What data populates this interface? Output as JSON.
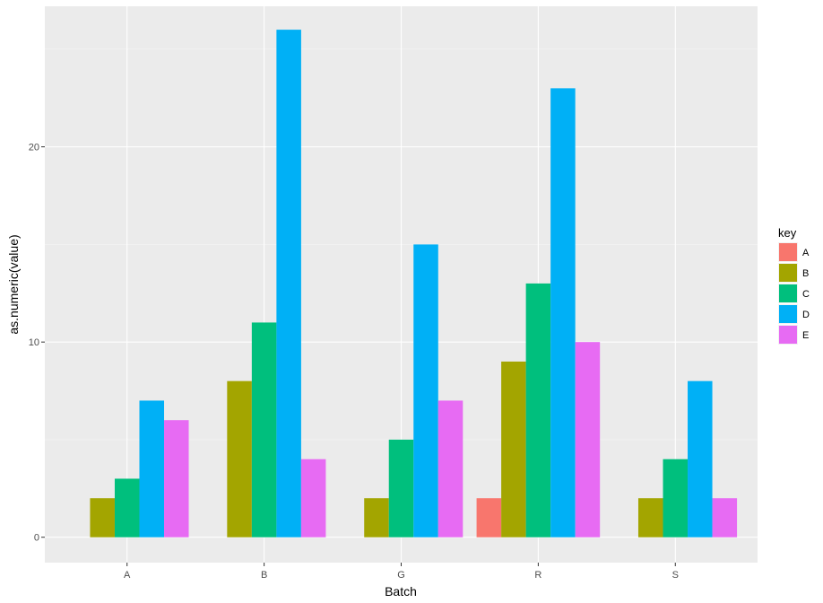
{
  "chart_data": {
    "type": "bar",
    "title": "",
    "xlabel": "Batch",
    "ylabel": "as.numeric(value)",
    "categories": [
      "A",
      "B",
      "G",
      "R",
      "S"
    ],
    "ylim": [
      -1.3,
      27.2
    ],
    "yticks": [
      0,
      10,
      20
    ],
    "grid": true,
    "legend": {
      "title": "key",
      "position": "right"
    },
    "series": [
      {
        "name": "A",
        "color": "#F8766D",
        "values": [
          null,
          null,
          null,
          2,
          null
        ]
      },
      {
        "name": "B",
        "color": "#A3A500",
        "values": [
          2,
          8,
          2,
          9,
          2
        ]
      },
      {
        "name": "C",
        "color": "#00BF7D",
        "values": [
          3,
          11,
          5,
          13,
          4
        ]
      },
      {
        "name": "D",
        "color": "#00B0F6",
        "values": [
          7,
          26,
          15,
          23,
          8
        ]
      },
      {
        "name": "E",
        "color": "#E76BF3",
        "values": [
          6,
          4,
          7,
          10,
          2
        ]
      }
    ]
  }
}
